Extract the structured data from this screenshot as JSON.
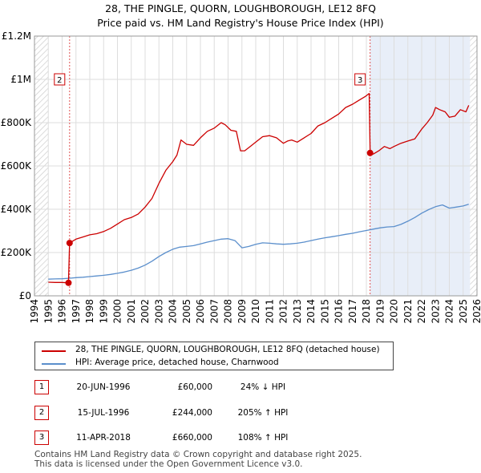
{
  "header": {
    "title_line1": "28, THE PINGLE, QUORN, LOUGHBOROUGH, LE12 8FQ",
    "title_line2": "Price paid vs. HM Land Registry's House Price Index (HPI)"
  },
  "colors": {
    "property": "#cc0000",
    "hpi": "#5b8fcc",
    "shade": "#e8eef8",
    "marker_line": "#e05050"
  },
  "chart_data": {
    "type": "line",
    "xlim": [
      1994,
      2026
    ],
    "ylim": [
      0,
      1200000
    ],
    "y_ticks": [
      {
        "value": 0,
        "label": "£0"
      },
      {
        "value": 200000,
        "label": "£200K"
      },
      {
        "value": 400000,
        "label": "£400K"
      },
      {
        "value": 600000,
        "label": "£600K"
      },
      {
        "value": 800000,
        "label": "£800K"
      },
      {
        "value": 1000000,
        "label": "£1M"
      },
      {
        "value": 1200000,
        "label": "£1.2M"
      }
    ],
    "x_ticks": [
      "1994",
      "1995",
      "1996",
      "1997",
      "1998",
      "1999",
      "2000",
      "2001",
      "2002",
      "2003",
      "2004",
      "2005",
      "2006",
      "2007",
      "2008",
      "2009",
      "2010",
      "2011",
      "2012",
      "2013",
      "2014",
      "2015",
      "2016",
      "2017",
      "2018",
      "2019",
      "2020",
      "2021",
      "2022",
      "2023",
      "2024",
      "2025",
      "2026"
    ],
    "shaded_region": [
      2018.27,
      2025.5
    ],
    "hatched_regions": [
      [
        1994,
        1995
      ],
      [
        2025.5,
        2026
      ]
    ],
    "series": [
      {
        "name": "28, THE PINGLE, QUORN, LOUGHBOROUGH, LE12 8FQ (detached house)",
        "x": [
          1995.0,
          1995.5,
          1996.0,
          1996.46,
          1996.54,
          1997.0,
          1997.5,
          1998.0,
          1998.5,
          1999.0,
          1999.5,
          2000.0,
          2000.5,
          2001.0,
          2001.5,
          2002.0,
          2002.5,
          2003.0,
          2003.5,
          2004.0,
          2004.3,
          2004.6,
          2005.0,
          2005.5,
          2006.0,
          2006.5,
          2007.0,
          2007.5,
          2007.8,
          2008.2,
          2008.6,
          2008.9,
          2009.2,
          2009.6,
          2010.0,
          2010.5,
          2011.0,
          2011.5,
          2012.0,
          2012.3,
          2012.6,
          2013.0,
          2013.5,
          2014.0,
          2014.5,
          2015.0,
          2015.5,
          2016.0,
          2016.5,
          2017.0,
          2017.5,
          2017.9,
          2018.2,
          2018.27,
          2018.5,
          2018.9,
          2019.3,
          2019.7,
          2020.0,
          2020.5,
          2021.0,
          2021.5,
          2022.0,
          2022.4,
          2022.8,
          2023.0,
          2023.3,
          2023.7,
          2024.0,
          2024.4,
          2024.8,
          2025.2,
          2025.4
        ],
        "values": [
          63000,
          62000,
          62000,
          60000,
          244000,
          262000,
          272000,
          282000,
          287000,
          297000,
          312000,
          332000,
          352000,
          362000,
          378000,
          410000,
          450000,
          520000,
          580000,
          620000,
          650000,
          720000,
          700000,
          695000,
          730000,
          760000,
          775000,
          800000,
          790000,
          765000,
          760000,
          670000,
          670000,
          690000,
          710000,
          735000,
          740000,
          730000,
          705000,
          715000,
          720000,
          710000,
          730000,
          750000,
          785000,
          800000,
          820000,
          840000,
          870000,
          885000,
          905000,
          920000,
          935000,
          660000,
          655000,
          670000,
          690000,
          680000,
          690000,
          705000,
          715000,
          725000,
          770000,
          800000,
          835000,
          870000,
          860000,
          850000,
          825000,
          830000,
          860000,
          850000,
          880000
        ]
      },
      {
        "name": "HPI: Average price, detached house, Charnwood",
        "x": [
          1995.0,
          1995.5,
          1996.0,
          1996.5,
          1997.0,
          1997.5,
          1998.0,
          1998.5,
          1999.0,
          1999.5,
          2000.0,
          2000.5,
          2001.0,
          2001.5,
          2002.0,
          2002.5,
          2003.0,
          2003.5,
          2004.0,
          2004.5,
          2005.0,
          2005.5,
          2006.0,
          2006.5,
          2007.0,
          2007.5,
          2008.0,
          2008.5,
          2009.0,
          2009.5,
          2010.0,
          2010.5,
          2011.0,
          2011.5,
          2012.0,
          2012.5,
          2013.0,
          2013.5,
          2014.0,
          2014.5,
          2015.0,
          2015.5,
          2016.0,
          2016.5,
          2017.0,
          2017.5,
          2018.0,
          2018.5,
          2019.0,
          2019.5,
          2020.0,
          2020.5,
          2021.0,
          2021.5,
          2022.0,
          2022.5,
          2023.0,
          2023.5,
          2024.0,
          2024.5,
          2025.0,
          2025.4
        ],
        "values": [
          77000,
          78000,
          79000,
          81000,
          84000,
          86000,
          89000,
          92000,
          95000,
          99000,
          104000,
          110000,
          118000,
          128000,
          142000,
          160000,
          182000,
          200000,
          215000,
          225000,
          228000,
          232000,
          240000,
          248000,
          255000,
          262000,
          264000,
          255000,
          222000,
          228000,
          238000,
          245000,
          243000,
          240000,
          238000,
          240000,
          243000,
          248000,
          255000,
          262000,
          268000,
          273000,
          278000,
          284000,
          289000,
          296000,
          302000,
          308000,
          314000,
          318000,
          320000,
          330000,
          345000,
          362000,
          382000,
          398000,
          412000,
          420000,
          405000,
          410000,
          415000,
          423000
        ]
      }
    ],
    "sales": [
      {
        "label": "1",
        "x": 1996.46,
        "value": 60000
      },
      {
        "label": "2",
        "x": 1996.54,
        "value": 244000
      },
      {
        "label": "3",
        "x": 2018.27,
        "value": 660000
      }
    ]
  },
  "legend": {
    "property_label": "28, THE PINGLE, QUORN, LOUGHBOROUGH, LE12 8FQ (detached house)",
    "hpi_label": "HPI: Average price, detached house, Charnwood"
  },
  "transactions": [
    {
      "num": "1",
      "date": "20-JUN-1996",
      "price": "£60,000",
      "hpi": "24% ↓ HPI"
    },
    {
      "num": "2",
      "date": "15-JUL-1996",
      "price": "£244,000",
      "hpi": "205% ↑ HPI"
    },
    {
      "num": "3",
      "date": "11-APR-2018",
      "price": "£660,000",
      "hpi": "108% ↑ HPI"
    }
  ],
  "footer": {
    "line1": "Contains HM Land Registry data © Crown copyright and database right 2025.",
    "line2": "This data is licensed under the Open Government Licence v3.0."
  }
}
